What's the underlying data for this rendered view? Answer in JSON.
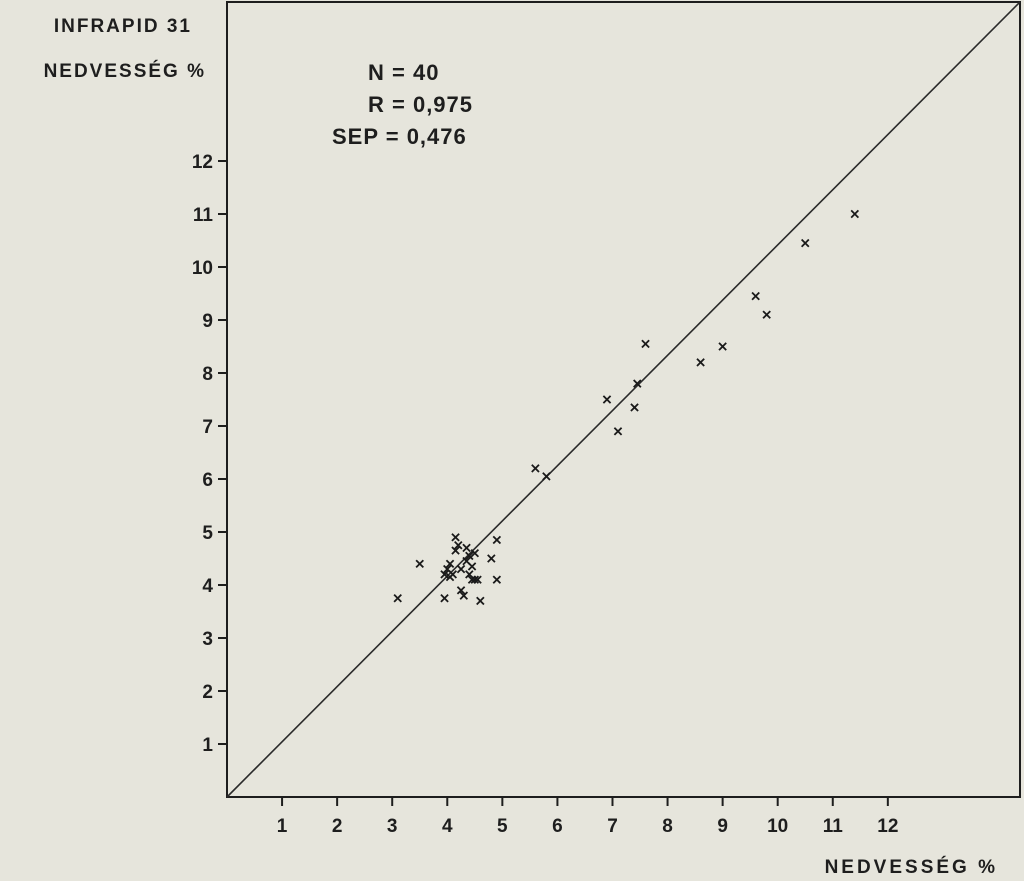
{
  "chart_data": {
    "type": "scatter",
    "title": "",
    "ylabel_lines": [
      "INFRAPID 31",
      "NEDVESSÉG %"
    ],
    "xlabel": "NEDVESSÉG %",
    "x_ticks": [
      "1",
      "2",
      "3",
      "4",
      "5",
      "6",
      "7",
      "8",
      "9",
      "10",
      "11",
      "12"
    ],
    "y_ticks": [
      "1",
      "2",
      "3",
      "4",
      "5",
      "6",
      "7",
      "8",
      "9",
      "10",
      "11",
      "12"
    ],
    "xlim": [
      0,
      14.4
    ],
    "ylim": [
      0,
      15
    ],
    "annotations": [
      "N = 40",
      "R = 0,975",
      "SEP = 0,476"
    ],
    "reference_line": {
      "from": [
        0,
        0
      ],
      "to": [
        14.4,
        15
      ]
    },
    "points": [
      [
        3.1,
        3.75
      ],
      [
        3.5,
        4.4
      ],
      [
        3.95,
        3.75
      ],
      [
        3.95,
        4.2
      ],
      [
        4.0,
        4.3
      ],
      [
        4.05,
        4.15
      ],
      [
        4.1,
        4.2
      ],
      [
        4.15,
        4.9
      ],
      [
        4.15,
        4.65
      ],
      [
        4.2,
        4.75
      ],
      [
        4.25,
        4.3
      ],
      [
        4.25,
        3.9
      ],
      [
        4.3,
        3.8
      ],
      [
        4.35,
        4.7
      ],
      [
        4.35,
        4.45
      ],
      [
        4.4,
        4.2
      ],
      [
        4.4,
        4.55
      ],
      [
        4.45,
        4.1
      ],
      [
        4.5,
        4.6
      ],
      [
        4.5,
        4.1
      ],
      [
        4.55,
        4.1
      ],
      [
        4.6,
        3.7
      ],
      [
        4.8,
        4.5
      ],
      [
        4.9,
        4.85
      ],
      [
        4.9,
        4.1
      ],
      [
        5.6,
        6.2
      ],
      [
        5.8,
        6.05
      ],
      [
        6.9,
        7.5
      ],
      [
        7.1,
        6.9
      ],
      [
        7.4,
        7.35
      ],
      [
        7.45,
        7.8
      ],
      [
        7.6,
        8.55
      ],
      [
        8.6,
        8.2
      ],
      [
        9.0,
        8.5
      ],
      [
        9.6,
        9.45
      ],
      [
        9.8,
        9.1
      ],
      [
        10.5,
        10.45
      ],
      [
        11.4,
        11.0
      ],
      [
        4.45,
        4.35
      ],
      [
        4.05,
        4.4
      ]
    ]
  }
}
